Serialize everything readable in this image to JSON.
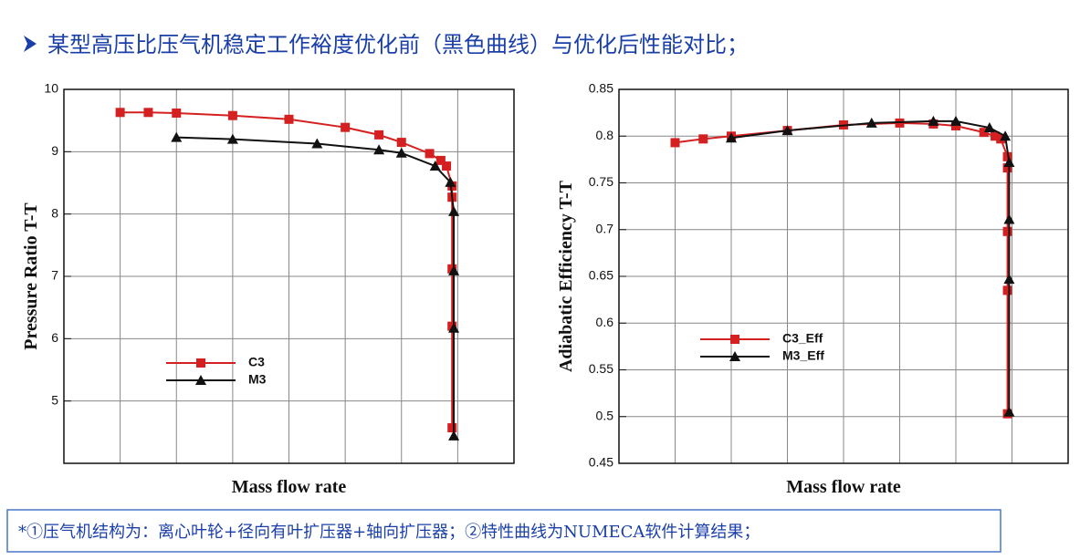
{
  "header": {
    "title": "某型高压比压气机稳定工作裕度优化前（黑色曲线）与优化后性能对比；"
  },
  "footnote": "*①压气机结构为：离心叶轮+径向有叶扩压器+轴向扩压器；②特性曲线为NUMECA软件计算结果；",
  "chart_data": [
    {
      "type": "line",
      "x_label": "Mass flow rate",
      "y_label": "Pressure Ratio T-T",
      "xlim": [
        0,
        8
      ],
      "ylim": [
        4,
        10
      ],
      "yticks": [
        5,
        6,
        7,
        8,
        9,
        10
      ],
      "grid": true,
      "series": [
        {
          "name": "C3",
          "color": "#d42020",
          "marker": "square",
          "x": [
            1,
            1.5,
            2,
            3,
            4,
            5,
            5.6,
            6,
            6.5,
            6.7,
            6.8,
            6.9,
            6.9,
            6.9,
            6.9,
            6.9
          ],
          "values": [
            9.63,
            9.63,
            9.62,
            9.58,
            9.52,
            9.39,
            9.27,
            9.15,
            8.97,
            8.86,
            8.77,
            8.45,
            8.27,
            7.12,
            6.2,
            4.57
          ]
        },
        {
          "name": "M3",
          "color": "#111111",
          "marker": "triangle",
          "x": [
            2,
            3,
            4.5,
            5.6,
            6,
            6.6,
            6.87,
            6.93,
            6.93,
            6.93,
            6.93
          ],
          "values": [
            9.23,
            9.2,
            9.13,
            9.03,
            8.98,
            8.77,
            8.51,
            8.04,
            7.09,
            6.17,
            4.44
          ]
        }
      ]
    },
    {
      "type": "line",
      "x_label": "Mass flow rate",
      "y_label": "Adiabatic Efficiency T-T",
      "xlim": [
        0,
        8
      ],
      "ylim": [
        0.45,
        0.85
      ],
      "yticks": [
        0.45,
        0.5,
        0.55,
        0.6,
        0.65,
        0.7,
        0.75,
        0.8,
        0.85
      ],
      "grid": true,
      "series": [
        {
          "name": "C3_Eff",
          "color": "#d42020",
          "marker": "square",
          "x": [
            1,
            1.5,
            2,
            3,
            4,
            5,
            5.6,
            6,
            6.5,
            6.7,
            6.8,
            6.92,
            6.92,
            6.92,
            6.92,
            6.92
          ],
          "values": [
            0.793,
            0.797,
            0.8,
            0.806,
            0.812,
            0.814,
            0.813,
            0.811,
            0.804,
            0.8,
            0.797,
            0.778,
            0.766,
            0.698,
            0.635,
            0.503
          ]
        },
        {
          "name": "M3_Eff",
          "color": "#111111",
          "marker": "triangle",
          "x": [
            2,
            3,
            4.5,
            5.6,
            6,
            6.6,
            6.88,
            6.95,
            6.95,
            6.95,
            6.95
          ],
          "values": [
            0.798,
            0.806,
            0.814,
            0.816,
            0.816,
            0.809,
            0.8,
            0.772,
            0.711,
            0.647,
            0.505
          ]
        }
      ]
    }
  ]
}
